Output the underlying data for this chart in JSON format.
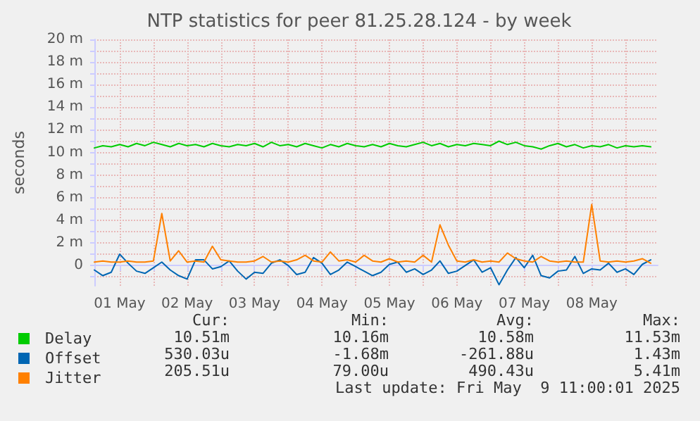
{
  "chart_data": {
    "type": "line",
    "title": "NTP statistics for peer 81.25.28.124 - by week",
    "ylabel": "seconds",
    "x": [
      "2025-05-01T03:00",
      "2025-05-01T06:00",
      "2025-05-01T09:00",
      "2025-05-01T12:00",
      "2025-05-01T15:00",
      "2025-05-01T18:00",
      "2025-05-01T21:00",
      "2025-05-02T00:00",
      "2025-05-02T03:00",
      "2025-05-02T06:00",
      "2025-05-02T09:00",
      "2025-05-02T12:00",
      "2025-05-02T15:00",
      "2025-05-02T18:00",
      "2025-05-02T21:00",
      "2025-05-03T00:00",
      "2025-05-03T03:00",
      "2025-05-03T06:00",
      "2025-05-03T09:00",
      "2025-05-03T12:00",
      "2025-05-03T15:00",
      "2025-05-03T18:00",
      "2025-05-03T21:00",
      "2025-05-04T00:00",
      "2025-05-04T03:00",
      "2025-05-04T06:00",
      "2025-05-04T09:00",
      "2025-05-04T12:00",
      "2025-05-04T15:00",
      "2025-05-04T18:00",
      "2025-05-04T21:00",
      "2025-05-05T00:00",
      "2025-05-05T03:00",
      "2025-05-05T06:00",
      "2025-05-05T09:00",
      "2025-05-05T12:00",
      "2025-05-05T15:00",
      "2025-05-05T18:00",
      "2025-05-05T21:00",
      "2025-05-06T00:00",
      "2025-05-06T03:00",
      "2025-05-06T06:00",
      "2025-05-06T09:00",
      "2025-05-06T12:00",
      "2025-05-06T15:00",
      "2025-05-06T18:00",
      "2025-05-06T21:00",
      "2025-05-07T00:00",
      "2025-05-07T03:00",
      "2025-05-07T06:00",
      "2025-05-07T09:00",
      "2025-05-07T12:00",
      "2025-05-07T15:00",
      "2025-05-07T18:00",
      "2025-05-07T21:00",
      "2025-05-08T00:00",
      "2025-05-08T03:00",
      "2025-05-08T06:00",
      "2025-05-08T09:00",
      "2025-05-08T12:00",
      "2025-05-08T15:00",
      "2025-05-08T18:00",
      "2025-05-08T21:00",
      "2025-05-09T00:00",
      "2025-05-09T03:00",
      "2025-05-09T06:00",
      "2025-05-09T09:00"
    ],
    "series": [
      {
        "name": "Delay",
        "color": "#00cc00",
        "values": [
          10.4,
          10.6,
          10.5,
          10.7,
          10.5,
          10.8,
          10.6,
          10.9,
          10.7,
          10.5,
          10.8,
          10.6,
          10.7,
          10.5,
          10.8,
          10.6,
          10.5,
          10.7,
          10.6,
          10.8,
          10.5,
          10.9,
          10.6,
          10.7,
          10.5,
          10.8,
          10.6,
          10.4,
          10.7,
          10.5,
          10.8,
          10.6,
          10.5,
          10.7,
          10.5,
          10.8,
          10.6,
          10.5,
          10.7,
          10.9,
          10.6,
          10.8,
          10.5,
          10.7,
          10.6,
          10.8,
          10.7,
          10.6,
          11.0,
          10.7,
          10.9,
          10.6,
          10.5,
          10.3,
          10.6,
          10.8,
          10.5,
          10.7,
          10.4,
          10.6,
          10.5,
          10.7,
          10.4,
          10.6,
          10.5,
          10.6,
          10.5
        ]
      },
      {
        "name": "Offset",
        "color": "#0066b3",
        "values": [
          -0.4,
          -0.9,
          -0.6,
          1.0,
          0.2,
          -0.5,
          -0.7,
          -0.2,
          0.3,
          -0.4,
          -0.9,
          -1.2,
          0.5,
          0.5,
          -0.3,
          -0.1,
          0.4,
          -0.5,
          -1.2,
          -0.6,
          -0.7,
          0.2,
          0.5,
          0.0,
          -0.8,
          -0.6,
          0.7,
          0.2,
          -0.8,
          -0.4,
          0.3,
          -0.1,
          -0.5,
          -0.9,
          -0.6,
          0.1,
          0.3,
          -0.6,
          -0.3,
          -0.8,
          -0.4,
          0.4,
          -0.7,
          -0.5,
          0.0,
          0.5,
          -0.6,
          -0.2,
          -1.7,
          -0.4,
          0.7,
          -0.2,
          0.9,
          -0.9,
          -1.1,
          -0.5,
          -0.4,
          0.8,
          -0.7,
          -0.3,
          -0.4,
          0.2,
          -0.6,
          -0.3,
          -0.8,
          0.1,
          0.5
        ]
      },
      {
        "name": "Jitter",
        "color": "#ff8000",
        "values": [
          0.3,
          0.4,
          0.3,
          0.3,
          0.4,
          0.3,
          0.3,
          0.4,
          4.6,
          0.4,
          1.3,
          0.3,
          0.4,
          0.3,
          1.7,
          0.5,
          0.4,
          0.3,
          0.3,
          0.4,
          0.8,
          0.3,
          0.4,
          0.3,
          0.5,
          0.9,
          0.4,
          0.3,
          1.2,
          0.4,
          0.5,
          0.3,
          0.9,
          0.4,
          0.3,
          0.6,
          0.3,
          0.4,
          0.3,
          0.9,
          0.3,
          3.6,
          1.8,
          0.4,
          0.3,
          0.5,
          0.3,
          0.4,
          0.3,
          1.1,
          0.6,
          0.4,
          0.3,
          0.8,
          0.4,
          0.3,
          0.4,
          0.3,
          0.3,
          5.4,
          0.4,
          0.3,
          0.4,
          0.3,
          0.4,
          0.6,
          0.2
        ]
      }
    ],
    "xlim": [
      "2025-05-01T03:00",
      "2025-05-09T11:30"
    ],
    "xticks": [
      {
        "value": "2025-05-01T12:00",
        "label": "01 May"
      },
      {
        "value": "2025-05-02T00:00",
        "label": null
      },
      {
        "value": "2025-05-02T12:00",
        "label": "02 May"
      },
      {
        "value": "2025-05-03T00:00",
        "label": null
      },
      {
        "value": "2025-05-03T12:00",
        "label": "03 May"
      },
      {
        "value": "2025-05-04T00:00",
        "label": null
      },
      {
        "value": "2025-05-04T12:00",
        "label": "04 May"
      },
      {
        "value": "2025-05-05T00:00",
        "label": null
      },
      {
        "value": "2025-05-05T12:00",
        "label": "05 May"
      },
      {
        "value": "2025-05-06T00:00",
        "label": null
      },
      {
        "value": "2025-05-06T12:00",
        "label": "06 May"
      },
      {
        "value": "2025-05-07T00:00",
        "label": null
      },
      {
        "value": "2025-05-07T12:00",
        "label": "07 May"
      },
      {
        "value": "2025-05-08T00:00",
        "label": null
      },
      {
        "value": "2025-05-08T12:00",
        "label": "08 May"
      },
      {
        "value": "2025-05-09T00:00",
        "label": null
      }
    ],
    "ylim": [
      -1.8,
      20
    ],
    "yticks": [
      {
        "value": -1,
        "label": null
      },
      0,
      {
        "value": 1,
        "label": null
      },
      {
        "value": 2,
        "label": "2 m"
      },
      {
        "value": 3,
        "label": null
      },
      {
        "value": 4,
        "label": "4 m"
      },
      {
        "value": 5,
        "label": null
      },
      {
        "value": 6,
        "label": "6 m"
      },
      {
        "value": 7,
        "label": null
      },
      {
        "value": 8,
        "label": "8 m"
      },
      {
        "value": 9,
        "label": null
      },
      {
        "value": 10,
        "label": "10 m"
      },
      {
        "value": 11,
        "label": null
      },
      {
        "value": 12,
        "label": "12 m"
      },
      {
        "value": 13,
        "label": null
      },
      {
        "value": 14,
        "label": "14 m"
      },
      {
        "value": 15,
        "label": null
      },
      {
        "value": 16,
        "label": "16 m"
      },
      {
        "value": 17,
        "label": null
      },
      {
        "value": 18,
        "label": "18 m"
      },
      {
        "value": 19,
        "label": null
      },
      {
        "value": 20,
        "label": "20 m"
      }
    ],
    "grid": true,
    "legend": "bottom",
    "marker": "none",
    "line_style": "solid",
    "annotations": [
      "Cur:",
      "Min:",
      "Avg:",
      "Max:",
      "10.51m",
      "10.16m",
      "10.58m",
      "11.53m",
      "530.03u",
      "-1.68m",
      "-261.88u",
      "1.43m",
      "205.51u",
      "79.00u",
      "490.43u",
      "5.41m",
      "Last update: Fri May  9 11:00:01 2025"
    ]
  }
}
